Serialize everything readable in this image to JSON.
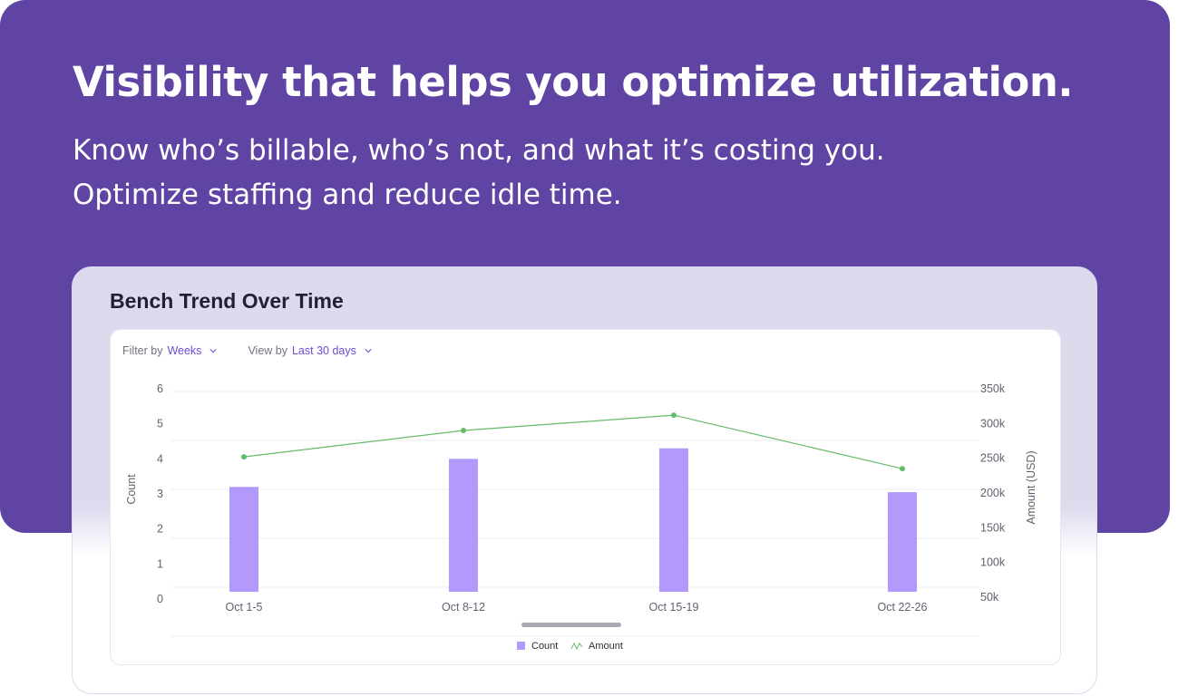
{
  "hero": {
    "title": "Visibility that helps you optimize utilization.",
    "subtitle": "Know who’s billable, who’s not, and what it’s costing you. Optimize staffing and reduce idle time."
  },
  "card": {
    "title": "Bench Trend Over Time"
  },
  "filters": {
    "filter_label": "Filter by",
    "filter_value": "Weeks",
    "view_label": "View by",
    "view_value": "Last 30 days"
  },
  "colors": {
    "hero_bg": "#5f44a3",
    "bar": "#b399fc",
    "line": "#66bb6a",
    "accent": "#6c4bd4"
  },
  "chart_data": {
    "type": "bar",
    "title": "Bench Trend Over Time",
    "categories": [
      "Oct 1-5",
      "Oct 8-12",
      "Oct 15-19",
      "Oct 22-26"
    ],
    "series": [
      {
        "name": "Count",
        "type": "bar",
        "axis": "left",
        "values": [
          3.2,
          4.0,
          4.3,
          3.05
        ]
      },
      {
        "name": "Amount",
        "type": "line",
        "axis": "right",
        "values": [
          252000,
          290000,
          312000,
          235000
        ]
      }
    ],
    "ylabel": "Count",
    "ylim": [
      0,
      6
    ],
    "yticks": [
      "0",
      "1",
      "2",
      "3",
      "4",
      "5",
      "6"
    ],
    "y2label": "Amount (USD)",
    "y2lim": [
      50000,
      350000
    ],
    "y2ticks": [
      "50k",
      "100k",
      "150k",
      "200k",
      "250k",
      "300k",
      "350k"
    ],
    "legend": [
      "Count",
      "Amount"
    ],
    "legend_position": "bottom-center",
    "grid": true
  }
}
